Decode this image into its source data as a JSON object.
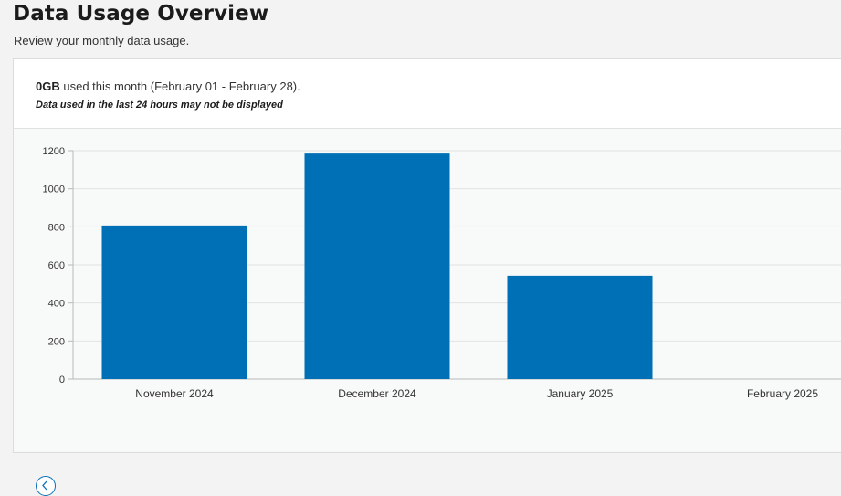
{
  "header": {
    "title": "Data Usage Overview",
    "subtitle": "Review your monthly data usage."
  },
  "summary": {
    "amount": "0GB",
    "text": "used this month (February 01 - February 28).",
    "disclaimer": "Data used in the last 24 hours may not be displayed"
  },
  "navigation": {
    "prev_icon": "chevron-left-icon"
  },
  "colors": {
    "bar": "#0070b6",
    "accent": "#0a70b4"
  },
  "chart_data": {
    "type": "bar",
    "categories": [
      "November 2024",
      "December 2024",
      "January 2025",
      "February 2025"
    ],
    "values": [
      807,
      1185,
      543,
      0
    ],
    "ylim": [
      0,
      1200
    ],
    "yticks": [
      0,
      200,
      400,
      600,
      800,
      1000,
      1200
    ],
    "grid": true
  }
}
